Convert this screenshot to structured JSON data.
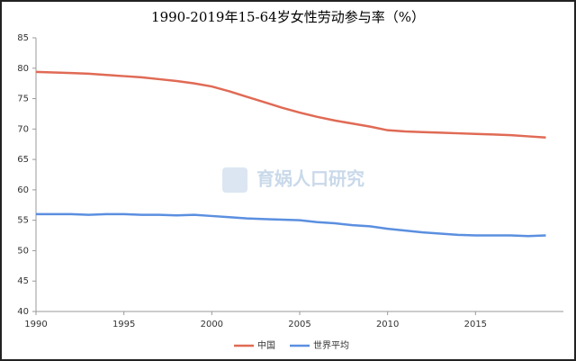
{
  "chart_data": {
    "type": "line",
    "title": "1990-2019年15-64岁女性劳动参与率（%）",
    "watermark": "育娲人口研究",
    "x": [
      1990,
      1991,
      1992,
      1993,
      1994,
      1995,
      1996,
      1997,
      1998,
      1999,
      2000,
      2001,
      2002,
      2003,
      2004,
      2005,
      2006,
      2007,
      2008,
      2009,
      2010,
      2011,
      2012,
      2013,
      2014,
      2015,
      2016,
      2017,
      2018,
      2019
    ],
    "series": [
      {
        "name": "中国",
        "color": "#e06a55",
        "values": [
          79.4,
          79.3,
          79.2,
          79.1,
          78.9,
          78.7,
          78.5,
          78.2,
          77.9,
          77.5,
          77.0,
          76.2,
          75.3,
          74.4,
          73.5,
          72.7,
          72.0,
          71.4,
          70.9,
          70.4,
          69.8,
          69.6,
          69.5,
          69.4,
          69.3,
          69.2,
          69.1,
          69.0,
          68.8,
          68.6
        ]
      },
      {
        "name": "世界平均",
        "color": "#5b8fe0",
        "values": [
          56.0,
          56.0,
          56.0,
          55.9,
          56.0,
          56.0,
          55.9,
          55.9,
          55.8,
          55.9,
          55.7,
          55.5,
          55.3,
          55.2,
          55.1,
          55.0,
          54.7,
          54.5,
          54.2,
          54.0,
          53.6,
          53.3,
          53.0,
          52.8,
          52.6,
          52.5,
          52.5,
          52.5,
          52.4,
          52.5
        ]
      }
    ],
    "xlim": [
      1990,
      2020
    ],
    "xticks": [
      1990,
      1995,
      2000,
      2005,
      2010,
      2015
    ],
    "ylim": [
      40,
      85
    ],
    "yticks": [
      40,
      45,
      50,
      55,
      60,
      65,
      70,
      75,
      80,
      85
    ],
    "legend": "bottom"
  }
}
